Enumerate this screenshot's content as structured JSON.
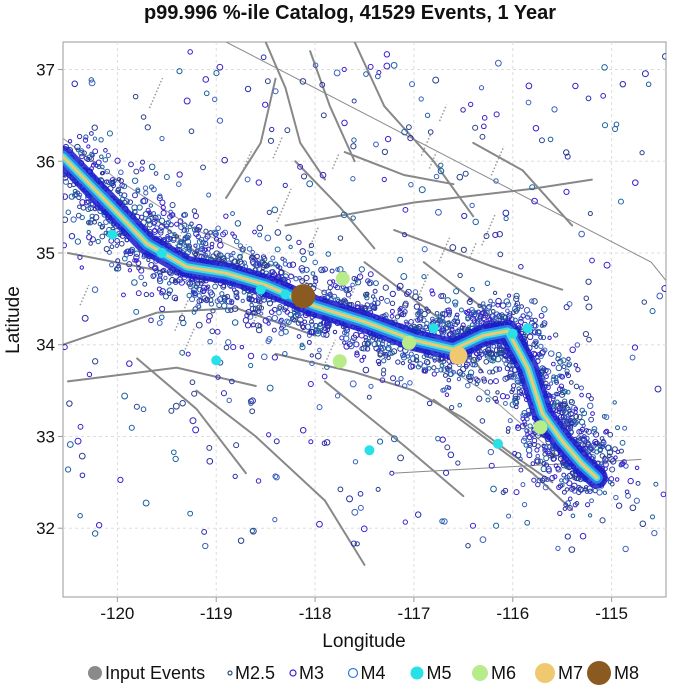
{
  "chart_data": {
    "type": "scatter",
    "title": "p99.996 %-ile Catalog, 41529 Events, 1 Year",
    "xlabel": "Longitude",
    "ylabel": "Latitude",
    "xlim": [
      -120.55,
      -114.45
    ],
    "ylim": [
      31.25,
      37.3
    ],
    "xticks": [
      -120,
      -119,
      -118,
      -117,
      -116,
      -115
    ],
    "yticks": [
      32,
      33,
      34,
      35,
      36,
      37
    ],
    "xtick_labels": [
      "-120",
      "-119",
      "-118",
      "-117",
      "-116",
      "-115"
    ],
    "ytick_labels": [
      "32",
      "33",
      "34",
      "35",
      "36",
      "37"
    ],
    "grid": true,
    "legend_position": "bottom",
    "legend": [
      {
        "label": "Input Events",
        "color": "#8a8a8a",
        "style": "filled"
      },
      {
        "label": "M2.5",
        "color": "#2a4f7a",
        "style": "ring"
      },
      {
        "label": "M3",
        "color": "#3a1fd0",
        "style": "ring"
      },
      {
        "label": "M4",
        "color": "#2f7fe0",
        "style": "ring"
      },
      {
        "label": "M5",
        "color": "#28e0e8",
        "style": "filled"
      },
      {
        "label": "M6",
        "color": "#b8ec8a",
        "style": "filled"
      },
      {
        "label": "M7",
        "color": "#f0c870",
        "style": "filled"
      },
      {
        "label": "M8",
        "color": "#8a5a20",
        "style": "filled"
      }
    ],
    "rupture_trace": {
      "lon": [
        -120.55,
        -120.1,
        -119.7,
        -119.3,
        -118.9,
        -118.5,
        -118.0,
        -117.5,
        -117.0,
        -116.6,
        -116.3,
        -116.05,
        -115.85,
        -115.7,
        -115.5,
        -115.3,
        -115.15
      ],
      "lat": [
        36.05,
        35.55,
        35.1,
        34.85,
        34.78,
        34.65,
        34.42,
        34.25,
        34.05,
        33.95,
        34.1,
        34.15,
        33.75,
        33.25,
        32.95,
        32.7,
        32.55
      ]
    },
    "large_events": [
      {
        "mag": "M8",
        "lon": -118.12,
        "lat": 34.53
      },
      {
        "mag": "M7",
        "lon": -116.55,
        "lat": 33.88
      },
      {
        "mag": "M6",
        "lon": -117.72,
        "lat": 34.72
      },
      {
        "mag": "M6",
        "lon": -117.05,
        "lat": 34.02
      },
      {
        "mag": "M6",
        "lon": -117.75,
        "lat": 33.82
      },
      {
        "mag": "M6",
        "lon": -115.72,
        "lat": 33.1
      },
      {
        "mag": "M5",
        "lon": -120.05,
        "lat": 35.2
      },
      {
        "mag": "M5",
        "lon": -119.55,
        "lat": 35.0
      },
      {
        "mag": "M5",
        "lon": -119.0,
        "lat": 33.83
      },
      {
        "mag": "M5",
        "lon": -118.3,
        "lat": 34.55
      },
      {
        "mag": "M5",
        "lon": -117.45,
        "lat": 32.85
      },
      {
        "mag": "M5",
        "lon": -116.15,
        "lat": 32.92
      },
      {
        "mag": "M5",
        "lon": -116.0,
        "lat": 34.12
      },
      {
        "mag": "M5",
        "lon": -115.85,
        "lat": 34.18
      },
      {
        "mag": "M5",
        "lon": -118.55,
        "lat": 34.6
      },
      {
        "mag": "M5",
        "lon": -116.8,
        "lat": 34.18
      }
    ]
  }
}
